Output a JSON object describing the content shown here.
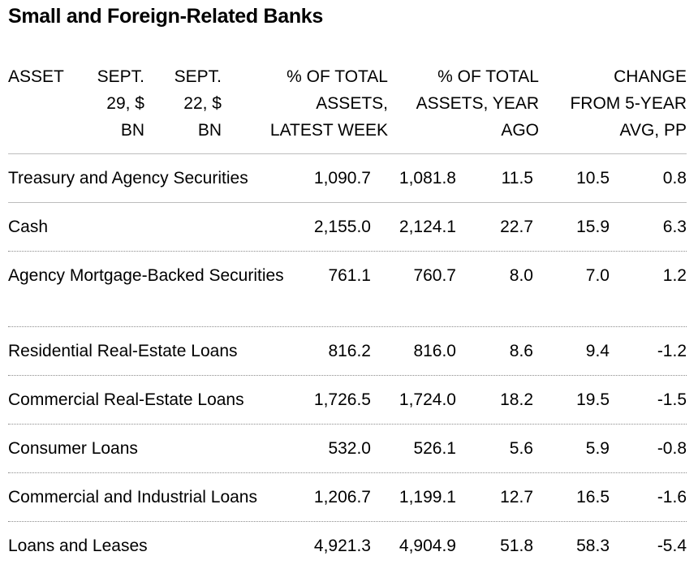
{
  "title": "Small and Foreign-Related Banks",
  "columns": {
    "asset": [
      "ASSET"
    ],
    "sept29": [
      "SEPT.",
      "29, $",
      "BN"
    ],
    "sept22": [
      "SEPT.",
      "22, $",
      "BN"
    ],
    "pct_latest": [
      "% OF TOTAL",
      "ASSETS,",
      "LATEST WEEK"
    ],
    "pct_year_ago": [
      "% OF TOTAL",
      "ASSETS, YEAR",
      "AGO"
    ],
    "change": [
      "CHANGE",
      "FROM 5-YEAR",
      "AVG, PP"
    ]
  },
  "rows": [
    {
      "asset": "Treasury and Agency Securities",
      "sept29": "1,090.7",
      "sept22": "1,081.8",
      "pct_latest": "11.5",
      "pct_year_ago": "10.5",
      "change": "0.8"
    },
    {
      "asset": "Cash",
      "sept29": "2,155.0",
      "sept22": "2,124.1",
      "pct_latest": "22.7",
      "pct_year_ago": "15.9",
      "change": "6.3"
    },
    {
      "asset": "Agency Mortgage-Backed Securities",
      "sept29": "761.1",
      "sept22": "760.7",
      "pct_latest": "8.0",
      "pct_year_ago": "7.0",
      "change": "1.2"
    },
    {
      "asset": "Residential Real-Estate Loans",
      "sept29": "816.2",
      "sept22": "816.0",
      "pct_latest": "8.6",
      "pct_year_ago": "9.4",
      "change": "-1.2"
    },
    {
      "asset": "Commercial Real-Estate Loans",
      "sept29": "1,726.5",
      "sept22": "1,724.0",
      "pct_latest": "18.2",
      "pct_year_ago": "19.5",
      "change": "-1.5"
    },
    {
      "asset": "Consumer Loans",
      "sept29": "532.0",
      "sept22": "526.1",
      "pct_latest": "5.6",
      "pct_year_ago": "5.9",
      "change": "-0.8"
    },
    {
      "asset": "Commercial and Industrial Loans",
      "sept29": "1,206.7",
      "sept22": "1,199.1",
      "pct_latest": "12.7",
      "pct_year_ago": "16.5",
      "change": "-1.6"
    },
    {
      "asset": "Loans and Leases",
      "sept29": "4,921.3",
      "sept22": "4,904.9",
      "pct_latest": "51.8",
      "pct_year_ago": "58.3",
      "change": "-5.4"
    }
  ]
}
